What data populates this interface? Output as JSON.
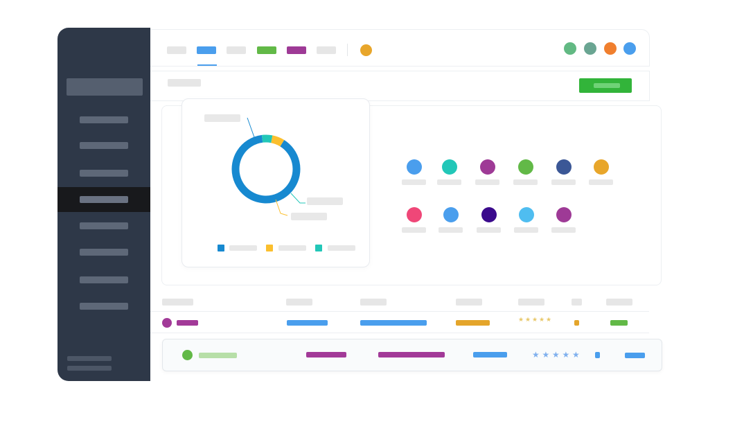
{
  "colors": {
    "sidebar_bg": "#2e3848",
    "sidebar_active": "#18191c",
    "accent_blue": "#4a9eed",
    "primary_green": "#32b43a",
    "donut_main": "#1789d0",
    "donut_yellow": "#fbbf2e",
    "donut_teal": "#22c7b8"
  },
  "header": {
    "tabs": [
      {
        "color": "#e6e6e6",
        "active": false
      },
      {
        "color": "#4a9eed",
        "active": true
      },
      {
        "color": "#e6e6e6",
        "active": false
      },
      {
        "color": "#62b947",
        "active": false
      },
      {
        "color": "#9e3a96",
        "active": false
      },
      {
        "color": "#e6e6e6",
        "active": false
      }
    ],
    "status_dot": "#e8a62b",
    "user_avatars": [
      "#62b983",
      "#6aa592",
      "#f07f2e",
      "#4a9eed"
    ]
  },
  "sidebar": {
    "item_count": 8,
    "active_index": 3
  },
  "donut": {
    "segments": [
      {
        "color": "#1789d0",
        "percent": 89
      },
      {
        "color": "#22c7b8",
        "percent": 5
      },
      {
        "color": "#fbbf2e",
        "percent": 6
      }
    ],
    "legend": [
      "#1789d0",
      "#fbbf2e",
      "#22c7b8"
    ]
  },
  "swatches": {
    "row1": [
      "#4a9eed",
      "#22c7b8",
      "#9e3a96",
      "#62b947",
      "#3b5796",
      "#e8a62b"
    ],
    "row2": [
      "#ef4778",
      "#4a9eed",
      "#3a0a8c",
      "#4fbdf0",
      "#9e3a96"
    ]
  },
  "table": {
    "rows": [
      {
        "avatar": "#a23a98",
        "rating": 5,
        "star_color": "#e8c86a"
      },
      {
        "avatar": "#62b947",
        "rating": 5,
        "star_color": "#7fb0ee"
      }
    ]
  }
}
